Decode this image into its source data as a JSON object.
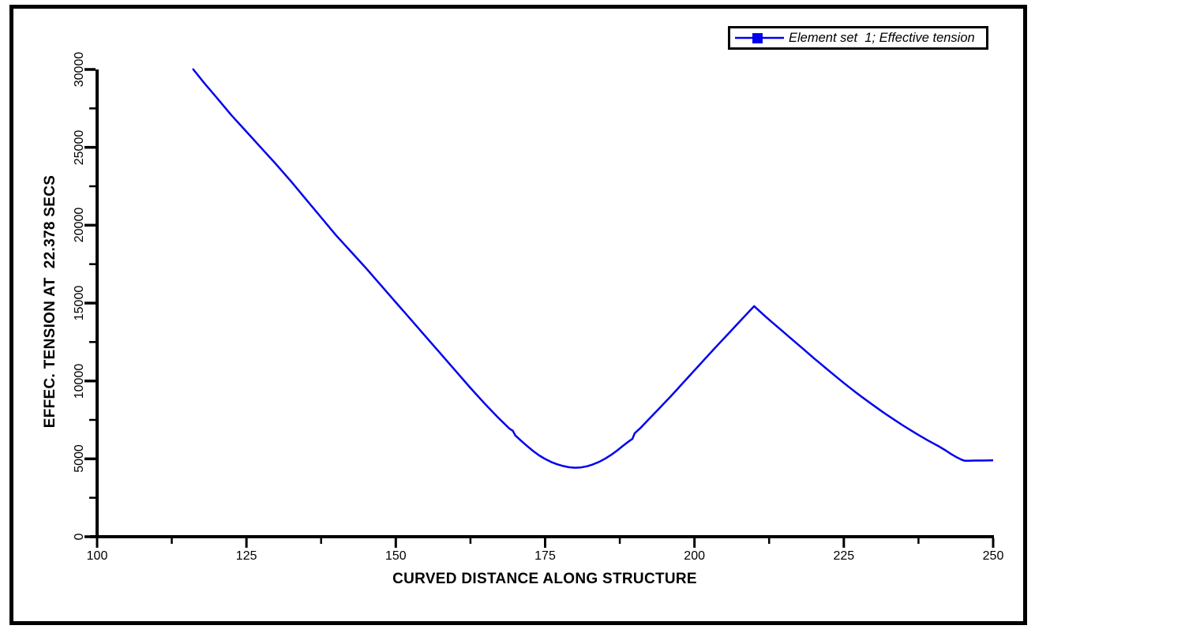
{
  "figure": {
    "background_color": "#ffffff",
    "border_color": "#000000"
  },
  "chart_data": {
    "type": "line",
    "title": "",
    "xlabel": "CURVED DISTANCE ALONG STRUCTURE",
    "ylabel": "EFFEC. TENSION AT  22.378 SECS",
    "xlim": [
      100,
      250
    ],
    "ylim": [
      0,
      30000
    ],
    "x_major_ticks": [
      100,
      125,
      150,
      175,
      200,
      225,
      250
    ],
    "x_minor_ticks": [
      112.5,
      137.5,
      162.5,
      187.5,
      212.5,
      237.5
    ],
    "y_major_ticks": [
      0,
      5000,
      10000,
      15000,
      20000,
      25000,
      30000
    ],
    "y_minor_ticks": [
      2500,
      7500,
      12500,
      17500,
      22500,
      27500
    ],
    "grid": false,
    "line_color": "#0000EE",
    "legend": {
      "position": "top-right",
      "entries": [
        {
          "label": "Element set  1; Effective tension",
          "marker": "square",
          "color": "#0000EE"
        }
      ]
    },
    "series": [
      {
        "name": "Element set  1; Effective tension",
        "color": "#0000EE",
        "points": [
          [
            116,
            30050
          ],
          [
            118,
            29100
          ],
          [
            120,
            28200
          ],
          [
            122.5,
            27050
          ],
          [
            125,
            26000
          ],
          [
            127.5,
            24950
          ],
          [
            130,
            23900
          ],
          [
            132.5,
            22800
          ],
          [
            135,
            21650
          ],
          [
            137.5,
            20500
          ],
          [
            140,
            19350
          ],
          [
            142.5,
            18300
          ],
          [
            145,
            17250
          ],
          [
            147.5,
            16150
          ],
          [
            150,
            15050
          ],
          [
            152.5,
            13950
          ],
          [
            155,
            12850
          ],
          [
            157.5,
            11750
          ],
          [
            160,
            10650
          ],
          [
            162.5,
            9550
          ],
          [
            165,
            8500
          ],
          [
            167,
            7700
          ],
          [
            169,
            6950
          ],
          [
            169.6,
            6800
          ],
          [
            170,
            6500
          ],
          [
            171,
            6150
          ],
          [
            172,
            5820
          ],
          [
            173,
            5500
          ],
          [
            174,
            5220
          ],
          [
            175,
            4990
          ],
          [
            176,
            4800
          ],
          [
            177,
            4650
          ],
          [
            178,
            4540
          ],
          [
            179,
            4460
          ],
          [
            180,
            4430
          ],
          [
            181,
            4450
          ],
          [
            182,
            4520
          ],
          [
            183,
            4640
          ],
          [
            184,
            4800
          ],
          [
            185,
            5000
          ],
          [
            186,
            5240
          ],
          [
            187,
            5520
          ],
          [
            188,
            5830
          ],
          [
            189,
            6120
          ],
          [
            189.6,
            6280
          ],
          [
            190,
            6650
          ],
          [
            191,
            7000
          ],
          [
            192,
            7400
          ],
          [
            193,
            7800
          ],
          [
            194,
            8200
          ],
          [
            195,
            8600
          ],
          [
            196,
            9000
          ],
          [
            197,
            9420
          ],
          [
            198,
            9840
          ],
          [
            199,
            10260
          ],
          [
            200,
            10680
          ],
          [
            201,
            11100
          ],
          [
            202,
            11520
          ],
          [
            203,
            11940
          ],
          [
            204,
            12350
          ],
          [
            205,
            12760
          ],
          [
            206,
            13170
          ],
          [
            207,
            13580
          ],
          [
            208,
            13990
          ],
          [
            209,
            14400
          ],
          [
            210,
            14800
          ],
          [
            211,
            14450
          ],
          [
            212,
            14100
          ],
          [
            213,
            13770
          ],
          [
            214,
            13440
          ],
          [
            215,
            13110
          ],
          [
            216,
            12780
          ],
          [
            217,
            12450
          ],
          [
            218,
            12120
          ],
          [
            219,
            11790
          ],
          [
            220,
            11460
          ],
          [
            221,
            11140
          ],
          [
            222,
            10820
          ],
          [
            223,
            10500
          ],
          [
            224,
            10180
          ],
          [
            225,
            9870
          ],
          [
            226,
            9570
          ],
          [
            227,
            9270
          ],
          [
            228,
            8980
          ],
          [
            229,
            8700
          ],
          [
            230,
            8420
          ],
          [
            231,
            8150
          ],
          [
            232,
            7880
          ],
          [
            233,
            7620
          ],
          [
            234,
            7370
          ],
          [
            235,
            7120
          ],
          [
            236,
            6880
          ],
          [
            237,
            6650
          ],
          [
            238,
            6420
          ],
          [
            239,
            6200
          ],
          [
            240,
            5990
          ],
          [
            241,
            5780
          ],
          [
            242,
            5550
          ],
          [
            243,
            5300
          ],
          [
            244,
            5080
          ],
          [
            244.8,
            4930
          ],
          [
            245.2,
            4880
          ],
          [
            246,
            4880
          ],
          [
            247,
            4890
          ],
          [
            248,
            4890
          ],
          [
            249,
            4895
          ],
          [
            250,
            4900
          ]
        ]
      }
    ]
  }
}
